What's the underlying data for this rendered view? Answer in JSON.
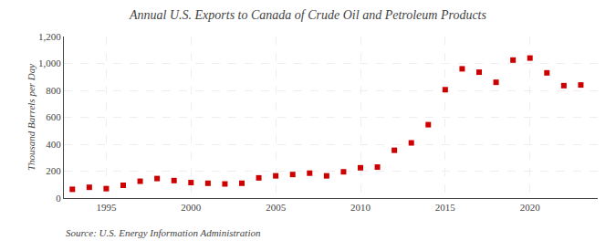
{
  "chart_data": {
    "type": "scatter",
    "title": "Annual U.S. Exports to Canada of Crude Oil and Petroleum Products",
    "y_label": "Thousand Barrels per Day",
    "annotations": [
      "Source: U.S. Energy Information Administration"
    ],
    "x": [
      1993,
      1994,
      1995,
      1996,
      1997,
      1998,
      1999,
      2000,
      2001,
      2002,
      2003,
      2004,
      2005,
      2006,
      2007,
      2008,
      2009,
      2010,
      2011,
      2012,
      2013,
      2014,
      2015,
      2016,
      2017,
      2018,
      2019,
      2020,
      2021,
      2022,
      2023
    ],
    "values": [
      65,
      80,
      70,
      95,
      125,
      145,
      130,
      115,
      110,
      105,
      110,
      150,
      165,
      175,
      185,
      165,
      195,
      225,
      230,
      355,
      410,
      545,
      805,
      960,
      935,
      860,
      1025,
      1040,
      930,
      835,
      840
    ],
    "color": "#cc0000",
    "marker": "square",
    "xlim": [
      1992.5,
      2024
    ],
    "ylim": [
      0,
      1200
    ],
    "xticks": [
      1995,
      2000,
      2005,
      2010,
      2015,
      2020
    ],
    "yticks": [
      0,
      200,
      400,
      600,
      800,
      {
        "value": 1000,
        "label": "1,000"
      },
      {
        "value": 1200,
        "label": "1,200"
      }
    ],
    "grid": true
  }
}
